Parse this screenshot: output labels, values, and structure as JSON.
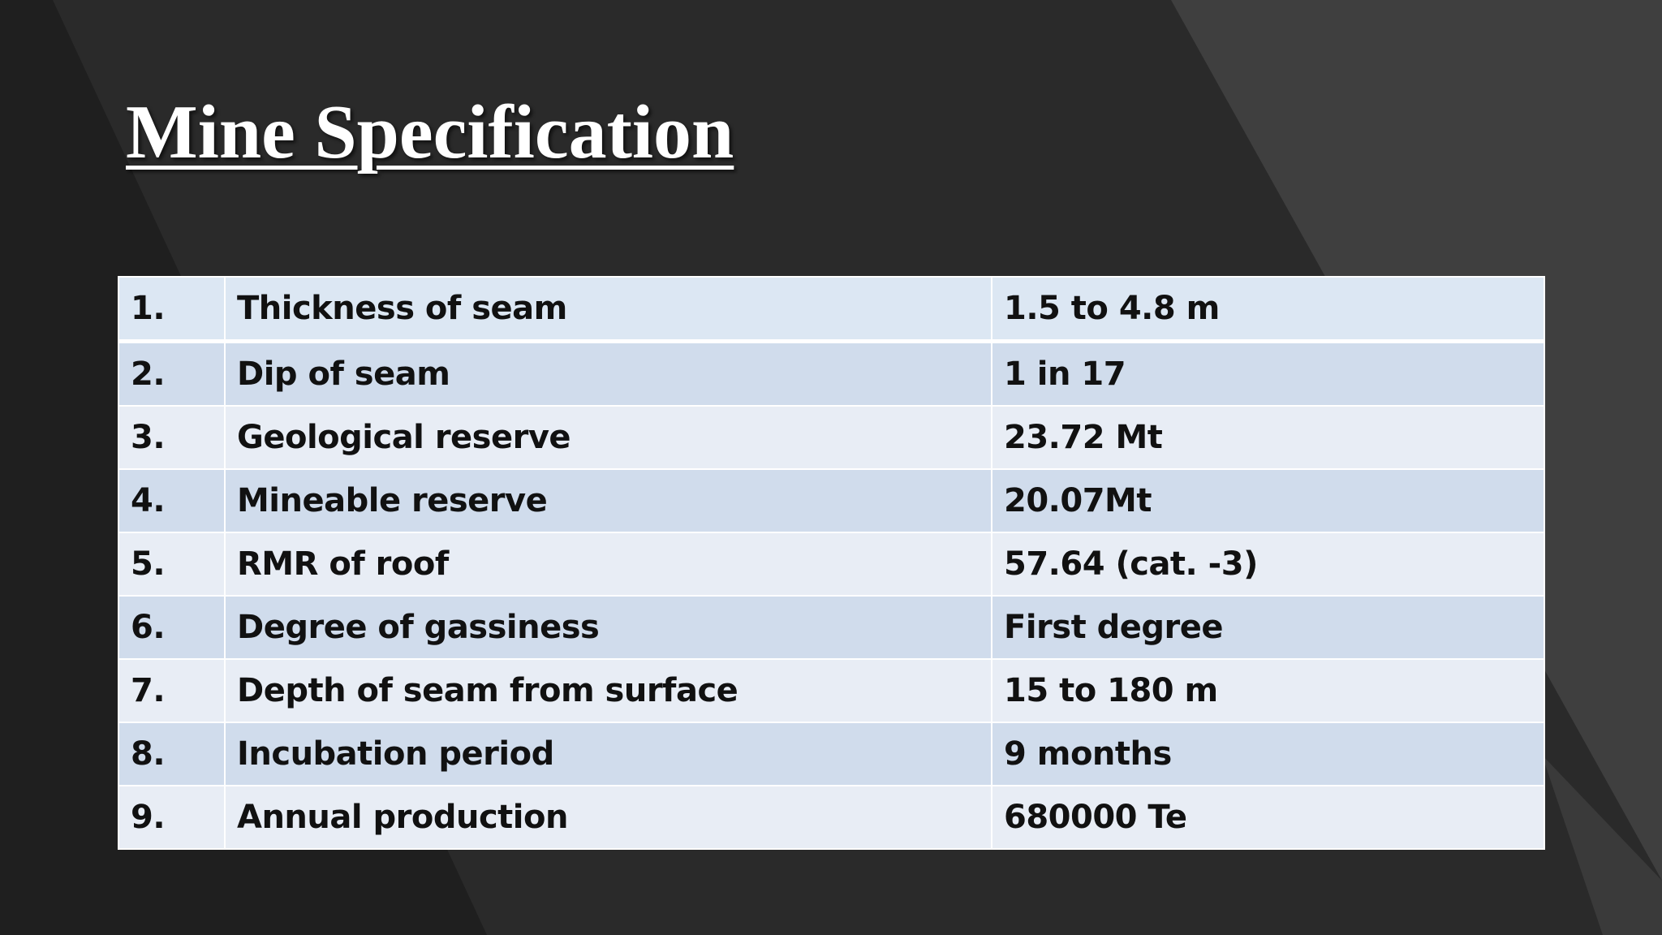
{
  "title": "Mine Specification",
  "table": {
    "rows": [
      [
        "1.",
        "Thickness of seam",
        "1.5 to 4.8 m"
      ],
      [
        "2.",
        "Dip of seam",
        "1 in 17"
      ],
      [
        "3.",
        "Geological reserve",
        "23.72 Mt"
      ],
      [
        "4.",
        "Mineable reserve",
        "20.07Mt"
      ],
      [
        "5.",
        "RMR of roof",
        "57.64 (cat. -3)"
      ],
      [
        "6.",
        "Degree of gassiness",
        "First degree"
      ],
      [
        "7.",
        "Depth of seam from surface",
        "15 to 180 m"
      ],
      [
        "8.",
        "Incubation period",
        "9 months"
      ],
      [
        "9.",
        "Annual production",
        "680000 Te"
      ]
    ]
  }
}
